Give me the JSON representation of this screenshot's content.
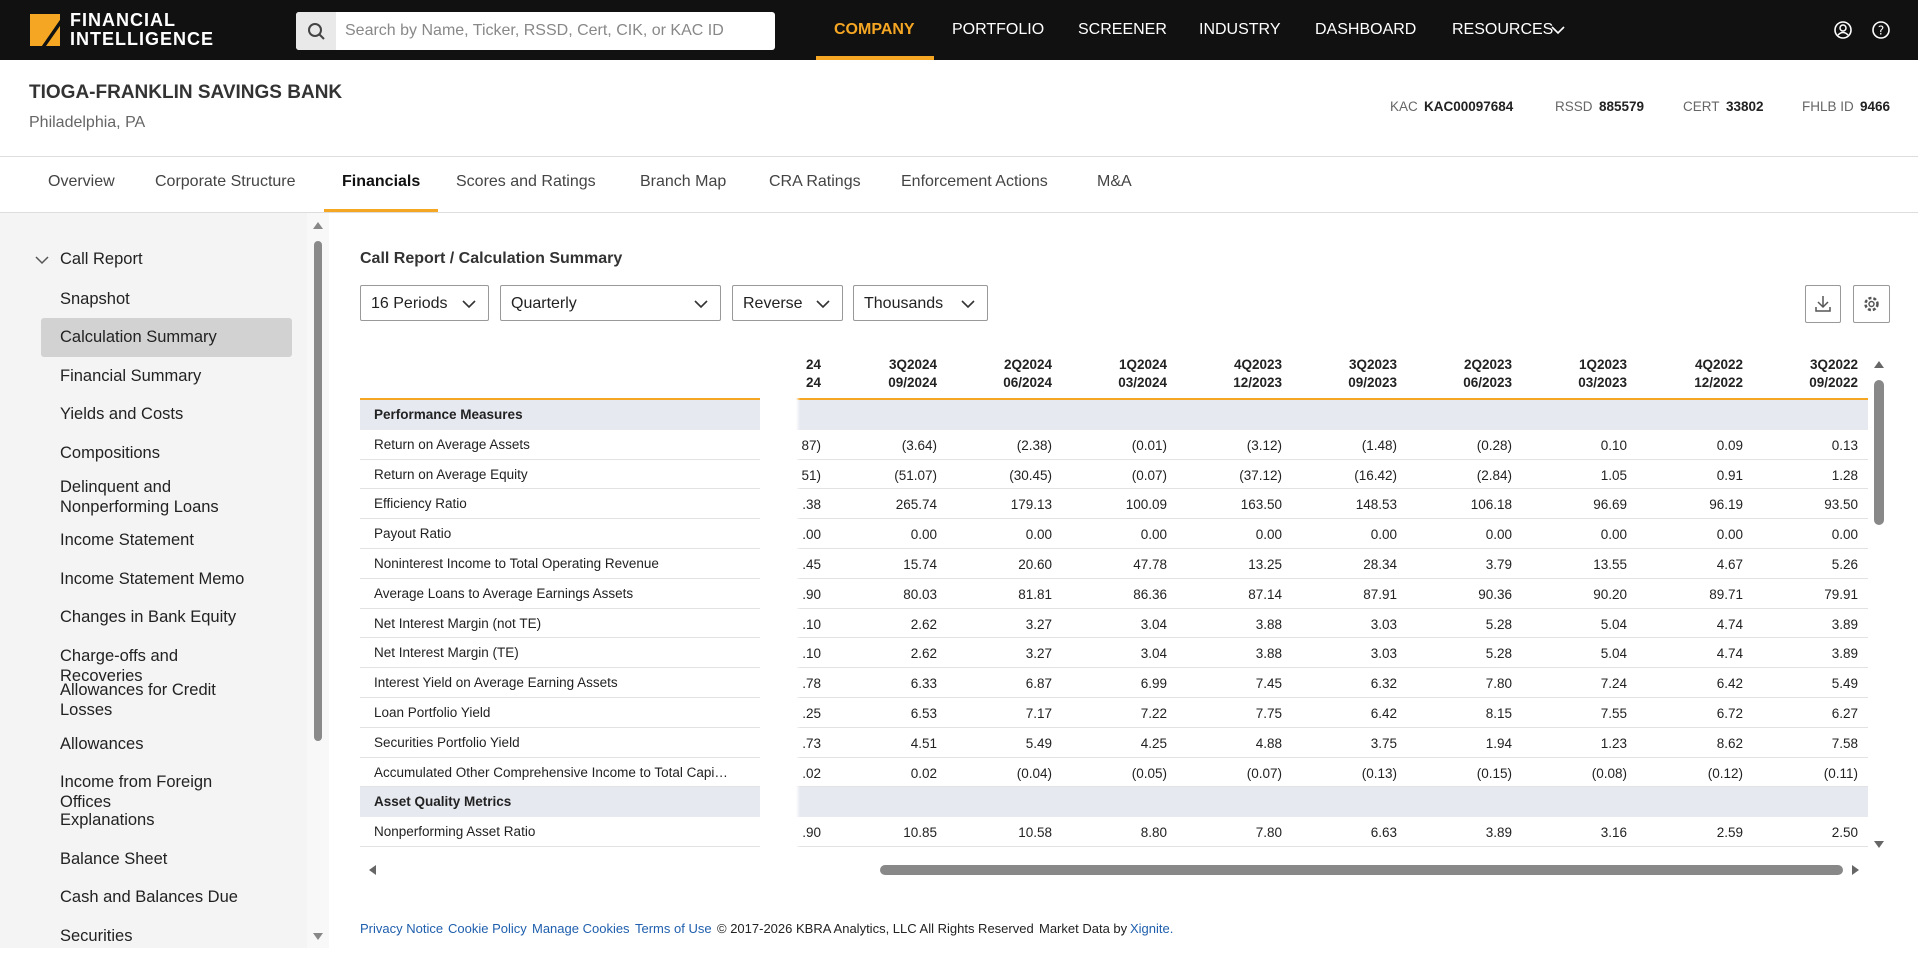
{
  "header": {
    "logo": [
      "FINANCIAL",
      "INTELLIGENCE"
    ],
    "search_placeholder": "Search by Name, Ticker, RSSD, Cert, CIK, or KAC ID",
    "nav": [
      "COMPANY",
      "PORTFOLIO",
      "SCREENER",
      "INDUSTRY",
      "DASHBOARD",
      "RESOURCES"
    ],
    "active_nav": 0
  },
  "company": {
    "name": "TIOGA-FRANKLIN SAVINGS BANK",
    "location": "Philadelphia, PA",
    "ids": [
      {
        "label": "KAC",
        "value": "KAC00097684"
      },
      {
        "label": "RSSD",
        "value": "885579"
      },
      {
        "label": "CERT",
        "value": "33802"
      },
      {
        "label": "FHLB ID",
        "value": "9466"
      }
    ]
  },
  "tabs": [
    "Overview",
    "Corporate Structure",
    "Financials",
    "Scores and Ratings",
    "Branch Map",
    "CRA Ratings",
    "Enforcement Actions",
    "M&A"
  ],
  "active_tab": 2,
  "sidebar": {
    "group": "Call Report",
    "items": [
      "Snapshot",
      "Calculation Summary",
      "Financial Summary",
      "Yields and Costs",
      "Compositions",
      "Delinquent and Nonperforming Loans",
      "Income Statement",
      "Income Statement Memo",
      "Changes in Bank Equity",
      "Charge-offs and Recoveries",
      "Allowances for Credit Losses",
      "Allowances",
      "Income from Foreign Offices",
      "Explanations",
      "Balance Sheet",
      "Cash and Balances Due",
      "Securities"
    ],
    "active_item": 1
  },
  "main": {
    "breadcrumb": "Call Report / Calculation Summary",
    "dropdowns": [
      "16 Periods",
      "Quarterly",
      "Reverse",
      "Thousands"
    ]
  },
  "table": {
    "columns": [
      {
        "period": "24",
        "date": "24"
      },
      {
        "period": "3Q2024",
        "date": "09/2024"
      },
      {
        "period": "2Q2024",
        "date": "06/2024"
      },
      {
        "period": "1Q2024",
        "date": "03/2024"
      },
      {
        "period": "4Q2023",
        "date": "12/2023"
      },
      {
        "period": "3Q2023",
        "date": "09/2023"
      },
      {
        "period": "2Q2023",
        "date": "06/2023"
      },
      {
        "period": "1Q2023",
        "date": "03/2023"
      },
      {
        "period": "4Q2022",
        "date": "12/2022"
      },
      {
        "period": "3Q2022",
        "date": "09/2022"
      }
    ],
    "sections": [
      {
        "title": "Performance Measures",
        "rows": [
          {
            "label": "Return on Average Assets",
            "values": [
              "87)",
              "(3.64)",
              "(2.38)",
              "(0.01)",
              "(3.12)",
              "(1.48)",
              "(0.28)",
              "0.10",
              "0.09",
              "0.13"
            ]
          },
          {
            "label": "Return on Average Equity",
            "values": [
              "51)",
              "(51.07)",
              "(30.45)",
              "(0.07)",
              "(37.12)",
              "(16.42)",
              "(2.84)",
              "1.05",
              "0.91",
              "1.28"
            ]
          },
          {
            "label": "Efficiency Ratio",
            "values": [
              ".38",
              "265.74",
              "179.13",
              "100.09",
              "163.50",
              "148.53",
              "106.18",
              "96.69",
              "96.19",
              "93.50"
            ]
          },
          {
            "label": "Payout Ratio",
            "values": [
              ".00",
              "0.00",
              "0.00",
              "0.00",
              "0.00",
              "0.00",
              "0.00",
              "0.00",
              "0.00",
              "0.00"
            ]
          },
          {
            "label": "Noninterest Income to Total Operating Revenue",
            "values": [
              ".45",
              "15.74",
              "20.60",
              "47.78",
              "13.25",
              "28.34",
              "3.79",
              "13.55",
              "4.67",
              "5.26"
            ]
          },
          {
            "label": "Average Loans to Average Earnings Assets",
            "values": [
              ".90",
              "80.03",
              "81.81",
              "86.36",
              "87.14",
              "87.91",
              "90.36",
              "90.20",
              "89.71",
              "79.91"
            ]
          },
          {
            "label": "Net Interest Margin (not TE)",
            "values": [
              ".10",
              "2.62",
              "3.27",
              "3.04",
              "3.88",
              "3.03",
              "5.28",
              "5.04",
              "4.74",
              "3.89"
            ]
          },
          {
            "label": "Net Interest Margin (TE)",
            "values": [
              ".10",
              "2.62",
              "3.27",
              "3.04",
              "3.88",
              "3.03",
              "5.28",
              "5.04",
              "4.74",
              "3.89"
            ]
          },
          {
            "label": "Interest Yield on Average Earning Assets",
            "values": [
              ".78",
              "6.33",
              "6.87",
              "6.99",
              "7.45",
              "6.32",
              "7.80",
              "7.24",
              "6.42",
              "5.49"
            ]
          },
          {
            "label": "Loan Portfolio Yield",
            "values": [
              ".25",
              "6.53",
              "7.17",
              "7.22",
              "7.75",
              "6.42",
              "8.15",
              "7.55",
              "6.72",
              "6.27"
            ]
          },
          {
            "label": "Securities Portfolio Yield",
            "values": [
              ".73",
              "4.51",
              "5.49",
              "4.25",
              "4.88",
              "3.75",
              "1.94",
              "1.23",
              "8.62",
              "7.58"
            ]
          },
          {
            "label": "Accumulated Other Comprehensive Income to Total Capi…",
            "values": [
              ".02",
              "0.02",
              "(0.04)",
              "(0.05)",
              "(0.07)",
              "(0.13)",
              "(0.15)",
              "(0.08)",
              "(0.12)",
              "(0.11)"
            ]
          }
        ]
      },
      {
        "title": "Asset Quality Metrics",
        "rows": [
          {
            "label": "Nonperforming Asset Ratio",
            "values": [
              ".90",
              "10.85",
              "10.58",
              "8.80",
              "7.80",
              "6.63",
              "3.89",
              "3.16",
              "2.59",
              "2.50"
            ]
          }
        ]
      }
    ]
  },
  "footer": {
    "links": [
      "Privacy Notice",
      "Cookie Policy",
      "Manage Cookies",
      "Terms of Use"
    ],
    "copyright": "© 2017-2026 KBRA Analytics, LLC All Rights Reserved",
    "market_data": "Market Data by",
    "provider": "Xignite."
  }
}
